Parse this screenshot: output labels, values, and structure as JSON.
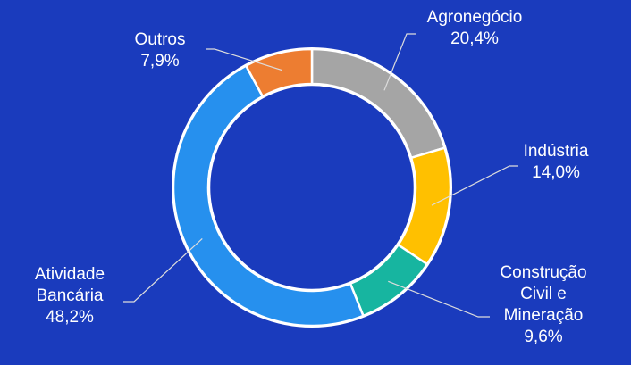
{
  "chart_data": {
    "type": "donut",
    "categories": [
      "Agronegócio",
      "Indústria",
      "Construção Civil e Mineração",
      "Atividade Bancária",
      "Outros"
    ],
    "values": [
      20.4,
      14.0,
      9.6,
      48.2,
      7.9
    ],
    "value_labels": [
      "20,4%",
      "14,0%",
      "9,6%",
      "48,2%",
      "7,9%"
    ],
    "colors": [
      "#a5a5a5",
      "#ffc000",
      "#17b5a0",
      "#2690ee",
      "#ed7d31"
    ]
  }
}
